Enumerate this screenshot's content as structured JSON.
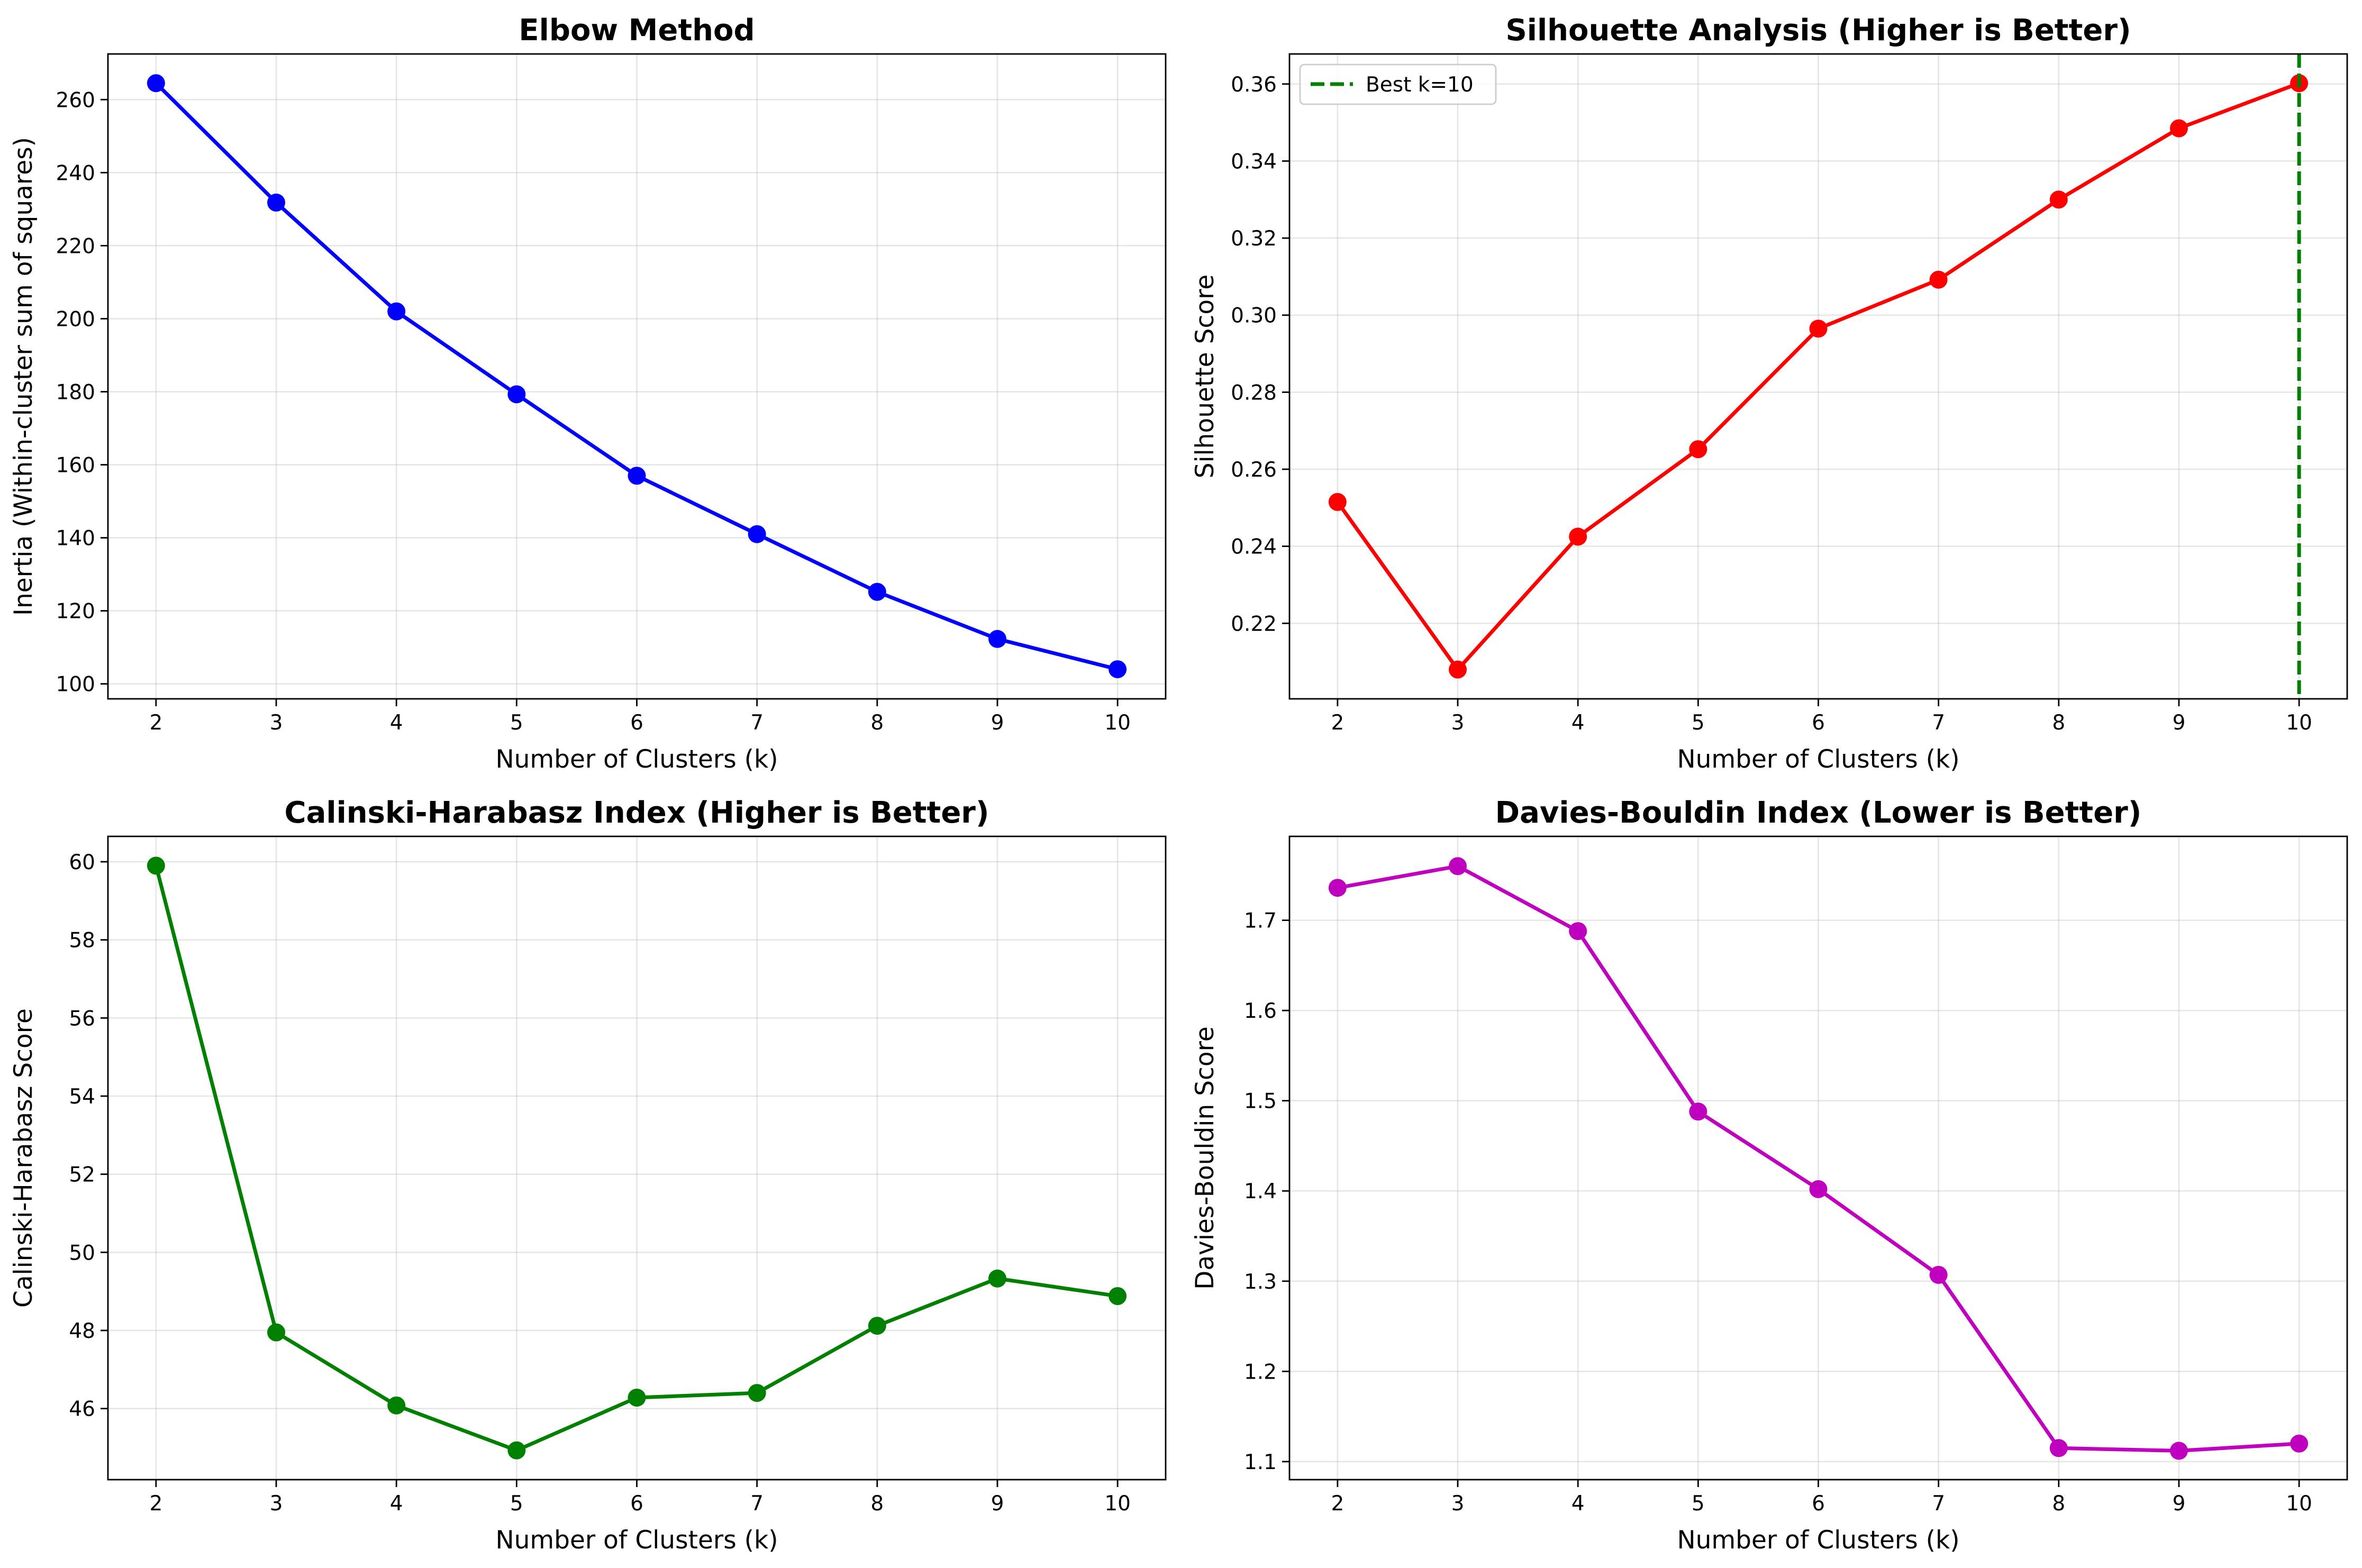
{
  "chart_data": [
    {
      "type": "line",
      "title": "Elbow Method",
      "xlabel": "Number of Clusters (k)",
      "ylabel": "Inertia (Within-cluster sum of squares)",
      "x": [
        2,
        3,
        4,
        5,
        6,
        7,
        8,
        9,
        10
      ],
      "series": [
        {
          "values": [
            264.5,
            231.8,
            202.0,
            179.3,
            157.0,
            141.0,
            125.2,
            112.3,
            104.0
          ],
          "color": "#0000ff"
        }
      ],
      "xlim": [
        1.6,
        10.4
      ],
      "ylim": [
        95.9,
        272.5
      ],
      "xticks": [
        2,
        3,
        4,
        5,
        6,
        7,
        8,
        9,
        10
      ],
      "yticks": [
        100,
        120,
        140,
        160,
        180,
        200,
        220,
        240,
        260
      ],
      "ytick_decimals": 0,
      "grid": true
    },
    {
      "type": "line",
      "title": "Silhouette Analysis (Higher is Better)",
      "xlabel": "Number of Clusters (k)",
      "ylabel": "Silhouette Score",
      "x": [
        2,
        3,
        4,
        5,
        6,
        7,
        8,
        9,
        10
      ],
      "series": [
        {
          "values": [
            0.2515,
            0.208,
            0.2425,
            0.2652,
            0.2965,
            0.3092,
            0.33,
            0.3485,
            0.3602
          ],
          "color": "#ff0000"
        }
      ],
      "vline": {
        "x": 10,
        "color": "#008000",
        "style": "dashed",
        "label": "Best k=10"
      },
      "legend": {
        "position": "top-left",
        "entries": [
          "Best k=10"
        ]
      },
      "xlim": [
        1.6,
        10.4
      ],
      "ylim": [
        0.2004,
        0.3678
      ],
      "xticks": [
        2,
        3,
        4,
        5,
        6,
        7,
        8,
        9,
        10
      ],
      "yticks": [
        0.22,
        0.24,
        0.26,
        0.28,
        0.3,
        0.32,
        0.34,
        0.36
      ],
      "ytick_decimals": 2,
      "grid": true
    },
    {
      "type": "line",
      "title": "Calinski-Harabasz Index (Higher is Better)",
      "xlabel": "Number of Clusters (k)",
      "ylabel": "Calinski-Harabasz Score",
      "x": [
        2,
        3,
        4,
        5,
        6,
        7,
        8,
        9,
        10
      ],
      "series": [
        {
          "values": [
            59.9,
            47.95,
            46.08,
            44.93,
            46.28,
            46.4,
            48.12,
            49.33,
            48.88
          ],
          "color": "#008000"
        }
      ],
      "xlim": [
        1.6,
        10.4
      ],
      "ylim": [
        44.18,
        60.65
      ],
      "xticks": [
        2,
        3,
        4,
        5,
        6,
        7,
        8,
        9,
        10
      ],
      "yticks": [
        46,
        48,
        50,
        52,
        54,
        56,
        58,
        60
      ],
      "ytick_decimals": 0,
      "grid": true
    },
    {
      "type": "line",
      "title": "Davies-Bouldin Index (Lower is Better)",
      "xlabel": "Number of Clusters (k)",
      "ylabel": "Davies-Bouldin Score",
      "x": [
        2,
        3,
        4,
        5,
        6,
        7,
        8,
        9,
        10
      ],
      "series": [
        {
          "values": [
            1.736,
            1.76,
            1.688,
            1.488,
            1.402,
            1.307,
            1.115,
            1.112,
            1.12
          ],
          "color": "#bf00bf"
        }
      ],
      "xlim": [
        1.6,
        10.4
      ],
      "ylim": [
        1.08,
        1.793
      ],
      "xticks": [
        2,
        3,
        4,
        5,
        6,
        7,
        8,
        9,
        10
      ],
      "yticks": [
        1.1,
        1.2,
        1.3,
        1.4,
        1.5,
        1.6,
        1.7
      ],
      "ytick_decimals": 1,
      "grid": true
    }
  ]
}
